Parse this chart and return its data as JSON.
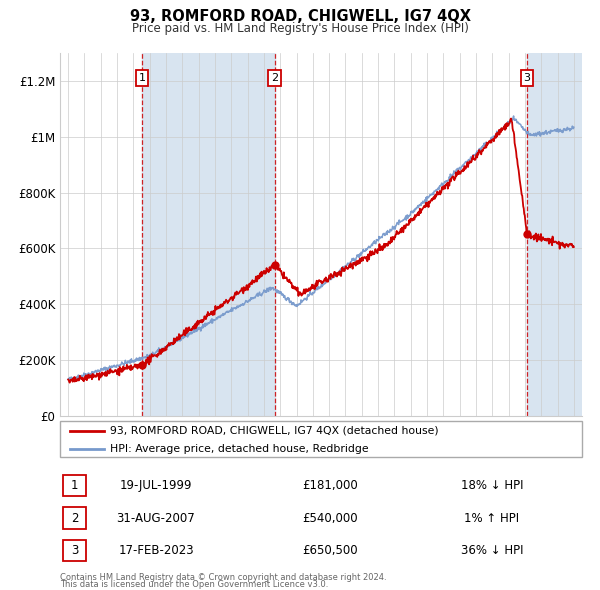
{
  "title": "93, ROMFORD ROAD, CHIGWELL, IG7 4QX",
  "subtitle": "Price paid vs. HM Land Registry's House Price Index (HPI)",
  "legend_line1": "93, ROMFORD ROAD, CHIGWELL, IG7 4QX (detached house)",
  "legend_line2": "HPI: Average price, detached house, Redbridge",
  "sale_color": "#cc0000",
  "hpi_color": "#7799cc",
  "shade_color": "#d8e4f0",
  "grid_color": "#cccccc",
  "ylim": [
    0,
    1300000
  ],
  "yticks": [
    0,
    200000,
    400000,
    600000,
    800000,
    1000000,
    1200000
  ],
  "ytick_labels": [
    "£0",
    "£200K",
    "£400K",
    "£600K",
    "£800K",
    "£1M",
    "£1.2M"
  ],
  "xlim_start": 1994.5,
  "xlim_end": 2026.5,
  "xticks": [
    1995,
    1996,
    1997,
    1998,
    1999,
    2000,
    2001,
    2002,
    2003,
    2004,
    2005,
    2006,
    2007,
    2008,
    2009,
    2010,
    2011,
    2012,
    2013,
    2014,
    2015,
    2016,
    2017,
    2018,
    2019,
    2020,
    2021,
    2022,
    2023,
    2024,
    2025,
    2026
  ],
  "transactions": [
    {
      "num": 1,
      "year": 1999.54,
      "price": 181000,
      "price_str": "£181,000",
      "date_str": "19-JUL-1999",
      "pct_str": "18% ↓ HPI"
    },
    {
      "num": 2,
      "year": 2007.67,
      "price": 540000,
      "price_str": "£540,000",
      "date_str": "31-AUG-2007",
      "pct_str": "1% ↑ HPI"
    },
    {
      "num": 3,
      "year": 2023.13,
      "price": 650500,
      "price_str": "£650,500",
      "date_str": "17-FEB-2023",
      "pct_str": "36% ↓ HPI"
    }
  ],
  "footnote1": "Contains HM Land Registry data © Crown copyright and database right 2024.",
  "footnote2": "This data is licensed under the Open Government Licence v3.0."
}
